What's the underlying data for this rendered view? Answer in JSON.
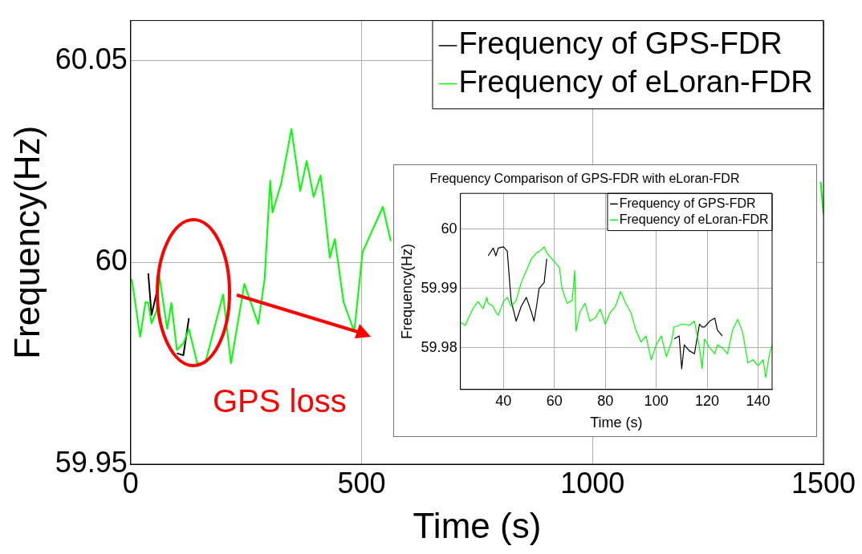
{
  "chart_data": [
    {
      "type": "line",
      "xlabel": "Time (s)",
      "ylabel": "Frequency(Hz)",
      "xlim": [
        0,
        1500
      ],
      "ylim": [
        59.95,
        60.06
      ],
      "xticks": [
        0,
        500,
        1000,
        1500
      ],
      "yticks": [
        59.95,
        60,
        60.05
      ],
      "grid": true,
      "legend": "top right",
      "annotations": [
        "GPS loss"
      ],
      "x": [
        0,
        3,
        20.5,
        32,
        38,
        45,
        56,
        62,
        79,
        88,
        100,
        114,
        126,
        144,
        161,
        200,
        217,
        246,
        276,
        290,
        302,
        307,
        326,
        348,
        367,
        381,
        396,
        411,
        417,
        431,
        442,
        461,
        484,
        502,
        546,
        563,
        1000,
        1494,
        1500
      ],
      "series": [
        {
          "name": "Frequency of GPS-FDR",
          "color": "#000000",
          "values": [
            null,
            null,
            null,
            null,
            59.9973,
            59.987,
            59.9925,
            null,
            null,
            null,
            59.9775,
            59.977,
            59.9862,
            null,
            null,
            null,
            null,
            null,
            null,
            null,
            null,
            null,
            null,
            null,
            null,
            null,
            null,
            null,
            null,
            null,
            null,
            null,
            null,
            null,
            null,
            null,
            null,
            null,
            null
          ]
        },
        {
          "name": "Frequency of eLoran-FDR",
          "color": "#00ff00",
          "values": [
            59.996,
            59.9953,
            59.9816,
            59.9902,
            59.99,
            59.9849,
            59.988,
            59.9967,
            59.9835,
            59.99,
            59.9783,
            59.98,
            59.9835,
            59.975,
            59.975,
            59.9921,
            59.975,
            59.9947,
            59.9848,
            59.996,
            60.0203,
            60.0124,
            60.0197,
            60.0331,
            60.0177,
            60.0252,
            60.0163,
            60.0216,
            60.016,
            60.0012,
            60.0058,
            59.9901,
            59.9829,
            60.0026,
            60.0138,
            60.0053,
            null,
            60.02,
            60.012
          ]
        }
      ]
    },
    {
      "type": "line",
      "title": "Frequency Comparison of GPS-FDR with eLoran-FDR",
      "xlabel": "Time (s)",
      "ylabel": "Frequency(Hz)",
      "xlim": [
        23.1,
        145.5
      ],
      "ylim": [
        59.973,
        60.006
      ],
      "xticks": [
        40,
        60,
        80,
        100,
        120,
        140
      ],
      "yticks": [
        59.98,
        59.99,
        60
      ],
      "grid": true,
      "legend": "top right",
      "x": [
        23.1,
        25,
        28,
        30,
        32,
        33.5,
        34,
        36,
        37,
        38,
        40,
        41.5,
        43,
        45,
        47,
        49,
        51,
        52,
        53,
        54,
        56,
        57,
        58,
        60,
        62,
        63,
        65,
        67,
        68,
        68.5,
        70,
        72,
        74,
        76,
        78,
        80,
        82,
        84,
        86,
        88,
        90,
        92,
        94,
        96,
        98,
        100,
        102,
        104,
        106,
        107,
        109,
        110,
        111,
        113,
        115,
        117,
        118,
        119,
        121,
        123,
        124,
        126,
        128,
        130,
        132,
        134,
        136,
        138,
        140,
        142,
        143,
        144.5,
        145.5
      ],
      "series": [
        {
          "name": "Frequency of GPS-FDR",
          "color": "#000000",
          "values": [
            null,
            null,
            null,
            null,
            null,
            null,
            59.9955,
            59.9968,
            59.9955,
            59.9968,
            59.997,
            59.9963,
            59.988,
            59.9845,
            59.987,
            59.9885,
            59.986,
            59.9845,
            59.987,
            59.99,
            59.991,
            59.995,
            null,
            null,
            null,
            null,
            null,
            null,
            null,
            null,
            null,
            null,
            null,
            null,
            null,
            null,
            null,
            null,
            null,
            null,
            null,
            null,
            null,
            null,
            null,
            null,
            null,
            null,
            null,
            59.9815,
            59.982,
            59.9765,
            59.9805,
            59.9795,
            59.979,
            59.984,
            59.9835,
            59.9835,
            59.9845,
            59.985,
            59.983,
            59.982,
            null,
            null,
            null,
            null,
            null,
            null,
            null,
            null,
            null,
            null,
            null
          ]
        },
        {
          "name": "Frequency of eLoran-FDR",
          "color": "#00ff00",
          "values": [
            59.9843,
            59.9838,
            59.9866,
            59.9878,
            59.9866,
            59.9885,
            59.9875,
            59.987,
            59.986,
            59.9855,
            59.9878,
            59.9885,
            59.987,
            59.988,
            59.991,
            59.993,
            59.995,
            59.9955,
            59.996,
            59.9962,
            59.997,
            59.996,
            59.9955,
            59.9945,
            59.9935,
            59.99,
            59.9875,
            59.988,
            59.993,
            59.9828,
            59.986,
            59.9875,
            59.9845,
            59.985,
            59.9865,
            59.984,
            59.986,
            59.987,
            59.9895,
            59.9875,
            59.986,
            59.983,
            59.981,
            59.982,
            59.978,
            59.9805,
            59.982,
            59.9785,
            59.981,
            59.9835,
            59.9838,
            59.984,
            59.984,
            59.9838,
            59.9845,
            59.98,
            59.9765,
            59.9815,
            59.98,
            59.979,
            59.9805,
            59.98,
            59.979,
            59.983,
            59.9848,
            59.9825,
            59.9775,
            59.978,
            59.977,
            59.978,
            59.975,
            59.979,
            59.9805
          ]
        }
      ]
    }
  ]
}
